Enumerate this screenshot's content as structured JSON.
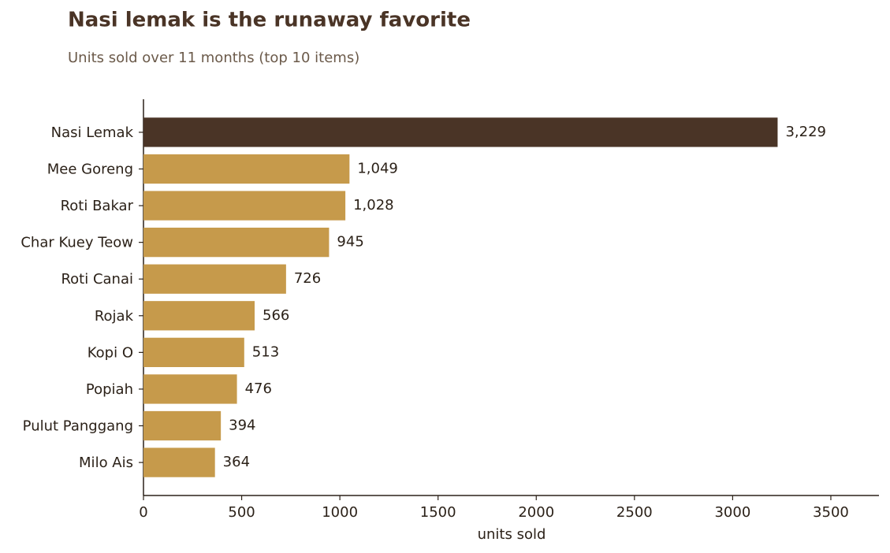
{
  "chart_data": {
    "type": "barh",
    "title": "Nasi lemak is the runaway favorite",
    "subtitle": "Units sold over 11 months (top 10 items)",
    "x_label": "units sold",
    "categories": [
      "Nasi Lemak",
      "Mee Goreng",
      "Roti Bakar",
      "Char Kuey Teow",
      "Roti Canai",
      "Rojak",
      "Kopi O",
      "Popiah",
      "Pulut Panggang",
      "Milo Ais"
    ],
    "values": [
      3229,
      1049,
      1028,
      945,
      726,
      566,
      513,
      476,
      394,
      364
    ],
    "value_labels": [
      "3,229",
      "1,049",
      "1,028",
      "945",
      "726",
      "566",
      "513",
      "476",
      "394",
      "364"
    ],
    "colors": [
      "#4a3426",
      "#c69a4b",
      "#c69a4b",
      "#c69a4b",
      "#c69a4b",
      "#c69a4b",
      "#c69a4b",
      "#c69a4b",
      "#c69a4b",
      "#c69a4b"
    ],
    "xlim": [
      0,
      3745
    ],
    "xticks": [
      0,
      500,
      1000,
      1500,
      2000,
      2500,
      3000,
      3500
    ]
  }
}
